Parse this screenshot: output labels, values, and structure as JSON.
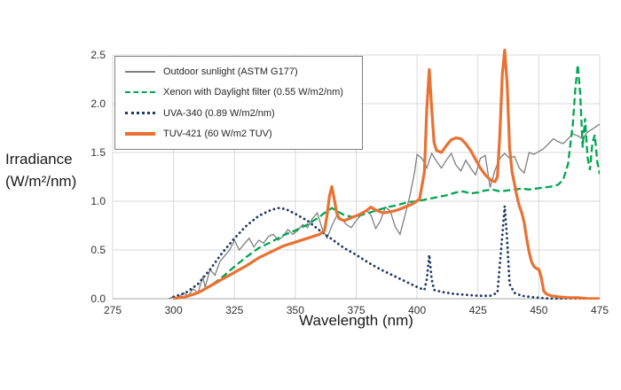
{
  "figure": {
    "xlabel": "Wavelength (nm)",
    "ylabel_lines": [
      "Irradiance",
      "(W/m²/nm)"
    ]
  },
  "chart_data": {
    "type": "line",
    "title": "",
    "xlabel": "Wavelength (nm)",
    "ylabel": "Irradiance (W/m²/nm)",
    "xlim": [
      275,
      475
    ],
    "ylim": [
      0,
      2.5
    ],
    "x_ticks": [
      275,
      300,
      325,
      350,
      375,
      400,
      425,
      450,
      475
    ],
    "y_ticks": [
      0.0,
      0.5,
      1.0,
      1.5,
      2.0,
      2.5
    ],
    "y_tick_labels": [
      "0.0",
      "0.5",
      "1.0",
      "1.5",
      "2.0",
      "2.5"
    ],
    "grid": true,
    "legend_position": "top-left",
    "series": [
      {
        "name": "Outdoor sunlight (ASTM G177)",
        "color": "#7F7F7F",
        "style": "solid-thin",
        "points": [
          [
            298,
            0.0
          ],
          [
            300,
            0.02
          ],
          [
            302,
            0.01
          ],
          [
            304,
            0.06
          ],
          [
            306,
            0.03
          ],
          [
            308,
            0.1
          ],
          [
            310,
            0.06
          ],
          [
            312,
            0.22
          ],
          [
            313,
            0.12
          ],
          [
            315,
            0.3
          ],
          [
            317,
            0.24
          ],
          [
            319,
            0.38
          ],
          [
            321,
            0.44
          ],
          [
            323,
            0.5
          ],
          [
            325,
            0.6
          ],
          [
            327,
            0.5
          ],
          [
            329,
            0.56
          ],
          [
            331,
            0.62
          ],
          [
            333,
            0.53
          ],
          [
            335,
            0.6
          ],
          [
            337,
            0.57
          ],
          [
            339,
            0.64
          ],
          [
            341,
            0.66
          ],
          [
            343,
            0.6
          ],
          [
            345,
            0.64
          ],
          [
            347,
            0.71
          ],
          [
            349,
            0.66
          ],
          [
            351,
            0.7
          ],
          [
            353,
            0.76
          ],
          [
            355,
            0.73
          ],
          [
            357,
            0.82
          ],
          [
            359,
            0.88
          ],
          [
            361,
            0.72
          ],
          [
            363,
            0.62
          ],
          [
            365,
            0.75
          ],
          [
            367,
            0.85
          ],
          [
            369,
            0.82
          ],
          [
            371,
            0.76
          ],
          [
            373,
            0.73
          ],
          [
            375,
            0.8
          ],
          [
            377,
            0.86
          ],
          [
            379,
            0.91
          ],
          [
            381,
            0.86
          ],
          [
            383,
            0.72
          ],
          [
            385,
            0.8
          ],
          [
            387,
            0.94
          ],
          [
            389,
            0.9
          ],
          [
            391,
            0.74
          ],
          [
            393,
            0.66
          ],
          [
            395,
            0.85
          ],
          [
            397,
            1.05
          ],
          [
            399,
            1.3
          ],
          [
            400,
            1.48
          ],
          [
            402,
            1.44
          ],
          [
            404,
            1.34
          ],
          [
            406,
            1.49
          ],
          [
            408,
            1.41
          ],
          [
            410,
            1.34
          ],
          [
            412,
            1.42
          ],
          [
            414,
            1.49
          ],
          [
            416,
            1.37
          ],
          [
            418,
            1.31
          ],
          [
            420,
            1.42
          ],
          [
            422,
            1.34
          ],
          [
            424,
            1.27
          ],
          [
            426,
            1.44
          ],
          [
            428,
            1.47
          ],
          [
            430,
            1.14
          ],
          [
            432,
            1.32
          ],
          [
            434,
            1.44
          ],
          [
            436,
            1.49
          ],
          [
            438,
            1.44
          ],
          [
            440,
            1.46
          ],
          [
            442,
            1.34
          ],
          [
            444,
            1.29
          ],
          [
            446,
            1.5
          ],
          [
            448,
            1.48
          ],
          [
            450,
            1.51
          ],
          [
            452,
            1.54
          ],
          [
            454,
            1.59
          ],
          [
            456,
            1.64
          ],
          [
            458,
            1.61
          ],
          [
            460,
            1.59
          ],
          [
            462,
            1.64
          ],
          [
            464,
            1.69
          ],
          [
            466,
            1.67
          ],
          [
            468,
            1.64
          ],
          [
            470,
            1.71
          ],
          [
            472,
            1.74
          ],
          [
            475,
            1.79
          ]
        ]
      },
      {
        "name": "Xenon with Daylight filter (0.55 W/m2/nm)",
        "color": "#00A651",
        "style": "dashed",
        "points": [
          [
            300,
            0.0
          ],
          [
            305,
            0.02
          ],
          [
            310,
            0.06
          ],
          [
            315,
            0.13
          ],
          [
            320,
            0.22
          ],
          [
            325,
            0.33
          ],
          [
            330,
            0.43
          ],
          [
            335,
            0.52
          ],
          [
            340,
            0.58
          ],
          [
            345,
            0.65
          ],
          [
            350,
            0.7
          ],
          [
            355,
            0.76
          ],
          [
            360,
            0.84
          ],
          [
            363,
            0.9
          ],
          [
            365,
            0.93
          ],
          [
            367,
            0.9
          ],
          [
            370,
            0.86
          ],
          [
            373,
            0.84
          ],
          [
            376,
            0.85
          ],
          [
            380,
            0.88
          ],
          [
            384,
            0.91
          ],
          [
            388,
            0.94
          ],
          [
            392,
            0.96
          ],
          [
            396,
            0.99
          ],
          [
            400,
            1.0
          ],
          [
            404,
            1.02
          ],
          [
            408,
            1.04
          ],
          [
            412,
            1.06
          ],
          [
            416,
            1.09
          ],
          [
            419,
            1.1
          ],
          [
            422,
            1.08
          ],
          [
            425,
            1.09
          ],
          [
            428,
            1.11
          ],
          [
            431,
            1.12
          ],
          [
            434,
            1.1
          ],
          [
            437,
            1.11
          ],
          [
            440,
            1.12
          ],
          [
            443,
            1.13
          ],
          [
            446,
            1.12
          ],
          [
            449,
            1.13
          ],
          [
            452,
            1.14
          ],
          [
            455,
            1.15
          ],
          [
            458,
            1.17
          ],
          [
            460,
            1.22
          ],
          [
            462,
            1.38
          ],
          [
            464,
            1.8
          ],
          [
            465,
            2.15
          ],
          [
            466,
            2.4
          ],
          [
            467,
            2.1
          ],
          [
            468,
            1.55
          ],
          [
            469,
            1.85
          ],
          [
            470,
            1.45
          ],
          [
            471,
            1.32
          ],
          [
            472,
            1.6
          ],
          [
            473,
            1.68
          ],
          [
            474,
            1.4
          ],
          [
            475,
            1.28
          ]
        ]
      },
      {
        "name": "UVA-340 (0.89 W/m2/nm)",
        "color": "#1F3864",
        "style": "dotted",
        "points": [
          [
            300,
            0.02
          ],
          [
            305,
            0.06
          ],
          [
            310,
            0.15
          ],
          [
            315,
            0.3
          ],
          [
            320,
            0.47
          ],
          [
            325,
            0.62
          ],
          [
            330,
            0.75
          ],
          [
            335,
            0.85
          ],
          [
            340,
            0.91
          ],
          [
            343,
            0.93
          ],
          [
            346,
            0.92
          ],
          [
            350,
            0.87
          ],
          [
            355,
            0.8
          ],
          [
            360,
            0.7
          ],
          [
            365,
            0.61
          ],
          [
            370,
            0.52
          ],
          [
            375,
            0.45
          ],
          [
            380,
            0.37
          ],
          [
            385,
            0.3
          ],
          [
            390,
            0.24
          ],
          [
            395,
            0.18
          ],
          [
            400,
            0.12
          ],
          [
            403,
            0.09
          ],
          [
            404,
            0.2
          ],
          [
            405,
            0.45
          ],
          [
            406,
            0.2
          ],
          [
            407,
            0.09
          ],
          [
            410,
            0.07
          ],
          [
            415,
            0.05
          ],
          [
            420,
            0.04
          ],
          [
            425,
            0.03
          ],
          [
            430,
            0.03
          ],
          [
            433,
            0.06
          ],
          [
            435,
            0.65
          ],
          [
            436,
            0.95
          ],
          [
            437,
            0.6
          ],
          [
            438,
            0.15
          ],
          [
            440,
            0.06
          ],
          [
            443,
            0.03
          ],
          [
            446,
            0.02
          ],
          [
            450,
            0.01
          ],
          [
            455,
            0.0
          ],
          [
            460,
            0.0
          ],
          [
            465,
            0.0
          ],
          [
            470,
            0.0
          ],
          [
            475,
            0.0
          ]
        ]
      },
      {
        "name": "TUV-421 (60 W/m2 TUV)",
        "color": "#E97132",
        "style": "solid-thick",
        "points": [
          [
            300,
            0.0
          ],
          [
            305,
            0.02
          ],
          [
            310,
            0.06
          ],
          [
            315,
            0.13
          ],
          [
            320,
            0.2
          ],
          [
            325,
            0.27
          ],
          [
            330,
            0.34
          ],
          [
            335,
            0.42
          ],
          [
            340,
            0.48
          ],
          [
            345,
            0.54
          ],
          [
            350,
            0.58
          ],
          [
            355,
            0.62
          ],
          [
            360,
            0.66
          ],
          [
            362,
            0.7
          ],
          [
            363,
            0.85
          ],
          [
            364,
            1.05
          ],
          [
            365,
            1.15
          ],
          [
            366,
            1.02
          ],
          [
            367,
            0.88
          ],
          [
            368,
            0.82
          ],
          [
            370,
            0.8
          ],
          [
            373,
            0.83
          ],
          [
            376,
            0.86
          ],
          [
            379,
            0.9
          ],
          [
            381,
            0.94
          ],
          [
            383,
            0.91
          ],
          [
            386,
            0.88
          ],
          [
            389,
            0.89
          ],
          [
            392,
            0.91
          ],
          [
            395,
            0.94
          ],
          [
            398,
            0.97
          ],
          [
            401,
            1.02
          ],
          [
            403,
            1.3
          ],
          [
            404,
            1.95
          ],
          [
            405,
            2.35
          ],
          [
            406,
            1.95
          ],
          [
            407,
            1.6
          ],
          [
            408,
            1.52
          ],
          [
            410,
            1.5
          ],
          [
            412,
            1.57
          ],
          [
            414,
            1.63
          ],
          [
            416,
            1.65
          ],
          [
            418,
            1.64
          ],
          [
            420,
            1.59
          ],
          [
            422,
            1.52
          ],
          [
            424,
            1.43
          ],
          [
            426,
            1.34
          ],
          [
            428,
            1.27
          ],
          [
            430,
            1.22
          ],
          [
            432,
            1.2
          ],
          [
            433,
            1.25
          ],
          [
            434,
            1.7
          ],
          [
            435,
            2.3
          ],
          [
            436,
            2.55
          ],
          [
            437,
            2.2
          ],
          [
            438,
            1.55
          ],
          [
            439,
            1.3
          ],
          [
            440,
            1.18
          ],
          [
            441,
            1.05
          ],
          [
            442,
            0.95
          ],
          [
            443,
            0.88
          ],
          [
            444,
            0.78
          ],
          [
            445,
            0.62
          ],
          [
            446,
            0.48
          ],
          [
            447,
            0.38
          ],
          [
            448,
            0.33
          ],
          [
            449,
            0.31
          ],
          [
            450,
            0.3
          ],
          [
            451,
            0.22
          ],
          [
            452,
            0.08
          ],
          [
            453,
            0.05
          ],
          [
            455,
            0.03
          ],
          [
            458,
            0.02
          ],
          [
            462,
            0.01
          ],
          [
            466,
            0.01
          ],
          [
            470,
            0.0
          ],
          [
            475,
            0.0
          ]
        ]
      }
    ]
  }
}
